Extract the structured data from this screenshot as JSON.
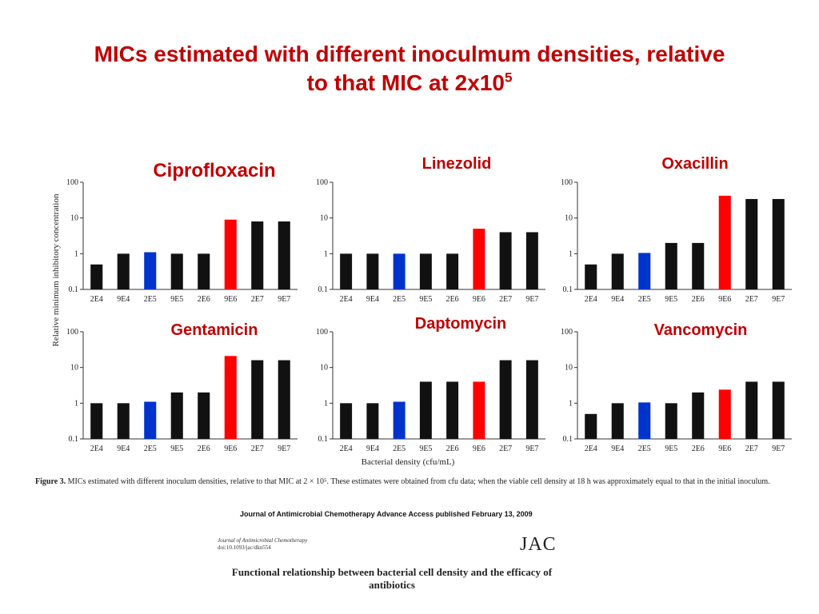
{
  "slide": {
    "title_line1": "MICs estimated with different inoculmum densities, relative",
    "title_line2": "to that MIC at 2x10",
    "title_sup": "5"
  },
  "figure": {
    "y_axis_label": "Relative minimum inhibitory concentration",
    "x_axis_label": "Bacterial density (cfu/mL)",
    "caption_bold": "Figure 3.",
    "caption_text": " MICs estimated with different inoculum densities, relative to that MIC at 2 × 10⁵. These estimates were obtained from cfu data; when the viable cell density at 18 h was approximately equal to that in the initial inoculum."
  },
  "footer": {
    "journal_line": "Journal of Antimicrobial Chemotherapy Advance Access published February 13, 2009",
    "small_journal_name": "Journal of Antimicrobial Chemotherapy",
    "small_doi": "doi:10.1093/jac/dkn554",
    "logo": "JAC",
    "paper_title": "Functional relationship between bacterial cell density and the efficacy of antibiotics"
  },
  "colors": {
    "title": "#c00000",
    "bar_default": "#111111",
    "bar_reference": "#0033cc",
    "bar_highlight": "#ff0000"
  },
  "chart_data": [
    {
      "type": "bar",
      "title": "Ciprofloxacin",
      "scale": "log",
      "ylim": [
        0.1,
        100
      ],
      "yticks": [
        "0.1",
        "1",
        "10",
        "100"
      ],
      "categories": [
        "2E4",
        "9E4",
        "2E5",
        "9E5",
        "2E6",
        "9E6",
        "2E7",
        "9E7"
      ],
      "values": [
        0.5,
        1,
        1.1,
        1,
        1,
        9,
        8,
        8
      ],
      "colors": [
        "black",
        "black",
        "blue",
        "black",
        "black",
        "red",
        "black",
        "black"
      ]
    },
    {
      "type": "bar",
      "title": "Linezolid",
      "scale": "log",
      "ylim": [
        0.1,
        100
      ],
      "yticks": [
        "0.1",
        "1",
        "10",
        "100"
      ],
      "categories": [
        "2E4",
        "9E4",
        "2E5",
        "9E5",
        "2E6",
        "9E6",
        "2E7",
        "9E7"
      ],
      "values": [
        1,
        1,
        1,
        1,
        1,
        5,
        4,
        4
      ],
      "colors": [
        "black",
        "black",
        "blue",
        "black",
        "black",
        "red",
        "black",
        "black"
      ]
    },
    {
      "type": "bar",
      "title": "Oxacillin",
      "scale": "log",
      "ylim": [
        0.1,
        100
      ],
      "yticks": [
        "0.1",
        "1",
        "10",
        "100"
      ],
      "categories": [
        "2E4",
        "9E4",
        "2E5",
        "9E5",
        "2E6",
        "9E6",
        "2E7",
        "9E7"
      ],
      "values": [
        0.5,
        1,
        1.05,
        2,
        2,
        42,
        34,
        34
      ],
      "colors": [
        "black",
        "black",
        "blue",
        "black",
        "black",
        "red",
        "black",
        "black"
      ]
    },
    {
      "type": "bar",
      "title": "Gentamicin",
      "scale": "log",
      "ylim": [
        0.1,
        100
      ],
      "yticks": [
        "0.1",
        "1",
        "10",
        "100"
      ],
      "categories": [
        "2E4",
        "9E4",
        "2E5",
        "9E5",
        "2E6",
        "9E6",
        "2E7",
        "9E7"
      ],
      "values": [
        1,
        1,
        1.1,
        2,
        2,
        21,
        16,
        16
      ],
      "colors": [
        "black",
        "black",
        "blue",
        "black",
        "black",
        "red",
        "black",
        "black"
      ]
    },
    {
      "type": "bar",
      "title": "Daptomycin",
      "scale": "log",
      "ylim": [
        0.1,
        100
      ],
      "yticks": [
        "0.1",
        "1",
        "10",
        "100"
      ],
      "categories": [
        "2E4",
        "9E4",
        "2E5",
        "9E5",
        "2E6",
        "9E6",
        "2E7",
        "9E7"
      ],
      "values": [
        1,
        1,
        1.1,
        4,
        4,
        4,
        16,
        16
      ],
      "colors": [
        "black",
        "black",
        "blue",
        "black",
        "black",
        "red",
        "black",
        "black"
      ]
    },
    {
      "type": "bar",
      "title": "Vancomycin",
      "scale": "log",
      "ylim": [
        0.1,
        100
      ],
      "yticks": [
        "0.1",
        "1",
        "10",
        "100"
      ],
      "categories": [
        "2E4",
        "9E4",
        "2E5",
        "9E5",
        "2E6",
        "9E6",
        "2E7",
        "9E7"
      ],
      "values": [
        0.5,
        1,
        1.05,
        1,
        2,
        2.4,
        4,
        4
      ],
      "colors": [
        "black",
        "black",
        "blue",
        "black",
        "black",
        "red",
        "black",
        "black"
      ]
    }
  ]
}
